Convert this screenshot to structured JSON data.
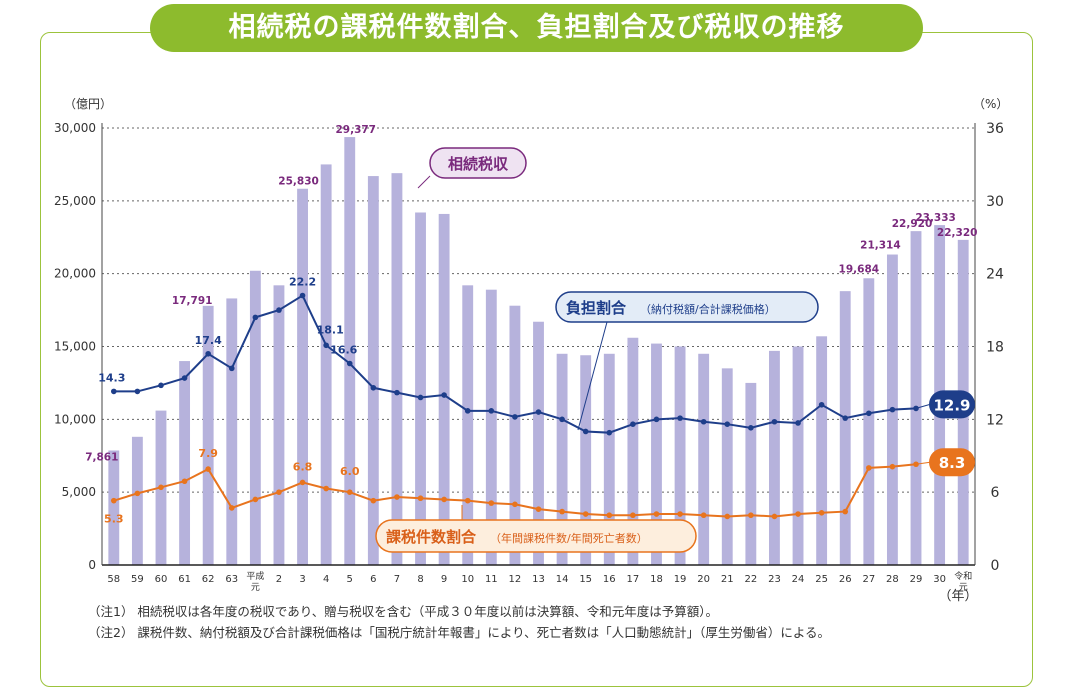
{
  "title": "相続税の課税件数割合、負担割合及び税収の推移",
  "notes": [
    "（注1） 相続税収は各年度の税収であり、贈与税収を含む（平成３０年度以前は決算額、令和元年度は予算額）。",
    "（注2） 課税件数、納付税額及び合計課税価格は「国税庁統計年報書」により、死亡者数は「人口動態統計」（厚生労働省）による。"
  ],
  "chart_data": {
    "type": "bar+line",
    "left_axis_unit": "（億円）",
    "right_axis_unit": "（%）",
    "x_unit": "（年）",
    "ylim_left": [
      0,
      30000
    ],
    "ylim_right": [
      0,
      36
    ],
    "left_ticks": [
      "0",
      "5,000",
      "10,000",
      "15,000",
      "20,000",
      "25,000",
      "30,000"
    ],
    "right_ticks": [
      "0",
      "6",
      "12",
      "18",
      "24",
      "30",
      "36"
    ],
    "gridlines": true,
    "categories": [
      "58",
      "59",
      "60",
      "61",
      "62",
      "63",
      "平成元",
      "2",
      "3",
      "4",
      "5",
      "6",
      "7",
      "8",
      "9",
      "10",
      "11",
      "12",
      "13",
      "14",
      "15",
      "16",
      "17",
      "18",
      "19",
      "20",
      "21",
      "22",
      "23",
      "24",
      "25",
      "26",
      "27",
      "28",
      "29",
      "30",
      "令和元"
    ],
    "series": [
      {
        "name": "相続税収",
        "axis": "left",
        "kind": "bar",
        "color": "#b6b2dc",
        "values": [
          7861,
          8800,
          10600,
          14000,
          17791,
          18300,
          20200,
          19200,
          25830,
          27500,
          29377,
          26700,
          26900,
          24200,
          24100,
          19200,
          18900,
          17800,
          16700,
          14500,
          14400,
          14500,
          15600,
          15200,
          15000,
          14500,
          13500,
          12500,
          14700,
          15000,
          15700,
          18800,
          19684,
          21314,
          22920,
          23333,
          22320
        ]
      },
      {
        "name": "負担割合",
        "sublabel": "（納付税額/合計課税価格）",
        "axis": "right",
        "kind": "line",
        "color": "#1e3e8a",
        "values": [
          14.3,
          14.3,
          14.8,
          15.4,
          17.4,
          16.2,
          20.4,
          21.0,
          22.2,
          18.1,
          16.6,
          14.6,
          14.2,
          13.8,
          14.0,
          12.7,
          12.7,
          12.2,
          12.6,
          12.0,
          11.0,
          10.9,
          11.6,
          12.0,
          12.1,
          11.8,
          11.6,
          11.3,
          11.8,
          11.7,
          13.2,
          12.1,
          12.5,
          12.8,
          12.9,
          null,
          null
        ],
        "end_label": "12.9"
      },
      {
        "name": "課税件数割合",
        "sublabel": "（年間課税件数/年間死亡者数）",
        "axis": "right",
        "kind": "line",
        "color": "#e8741e",
        "values": [
          5.3,
          5.9,
          6.4,
          6.9,
          7.9,
          4.7,
          5.4,
          6.0,
          6.8,
          6.3,
          6.0,
          5.3,
          5.6,
          5.5,
          5.4,
          5.3,
          5.1,
          5.0,
          4.6,
          4.4,
          4.2,
          4.1,
          4.1,
          4.2,
          4.2,
          4.1,
          4.0,
          4.1,
          4.0,
          4.2,
          4.3,
          4.4,
          8.0,
          8.1,
          8.3,
          null,
          null
        ],
        "end_label": "8.3"
      }
    ],
    "bar_labels": [
      {
        "i": 0,
        "text": "7,861"
      },
      {
        "i": 4,
        "text": "17,791"
      },
      {
        "i": 8,
        "text": "25,830"
      },
      {
        "i": 10,
        "text": "29,377"
      },
      {
        "i": 32,
        "text": "19,684"
      },
      {
        "i": 33,
        "text": "21,314"
      },
      {
        "i": 34,
        "text": "22,920"
      },
      {
        "i": 35,
        "text": "23,333"
      },
      {
        "i": 36,
        "text": "22,320"
      }
    ],
    "burden_labels": [
      {
        "i": 0,
        "text": "14.3"
      },
      {
        "i": 4,
        "text": "17.4"
      },
      {
        "i": 8,
        "text": "22.2"
      },
      {
        "i": 9,
        "text": "18.1"
      },
      {
        "i": 10,
        "text": "16.6"
      }
    ],
    "count_labels": [
      {
        "i": 0,
        "text": "5.3"
      },
      {
        "i": 4,
        "text": "7.9"
      },
      {
        "i": 8,
        "text": "6.8"
      },
      {
        "i": 10,
        "text": "6.0"
      }
    ]
  }
}
